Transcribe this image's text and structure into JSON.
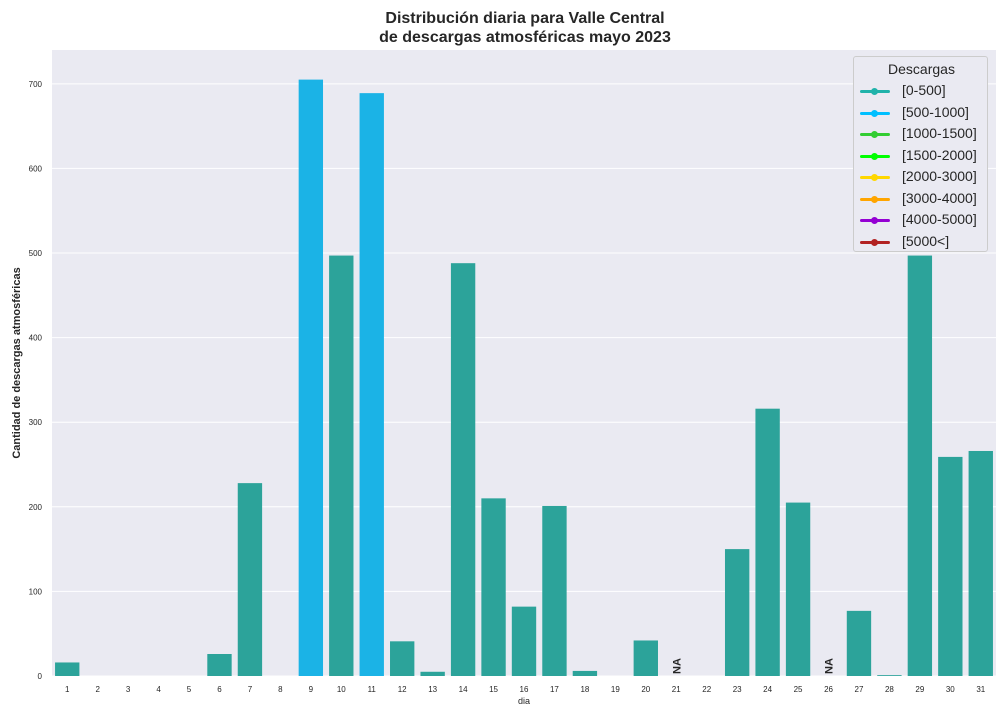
{
  "chart_data": {
    "type": "bar",
    "title_line1": "Distribución diaria para Valle Central",
    "title_line2": "de descargas atmosféricas mayo 2023",
    "xlabel": "dia",
    "ylabel": "Cantidad de descargas atmosféricas",
    "ylim": [
      0,
      740
    ],
    "yticks": [
      0,
      100,
      200,
      300,
      400,
      500,
      600,
      700
    ],
    "grid": true,
    "legend_position": "top-right",
    "categories": [
      "1",
      "2",
      "3",
      "4",
      "5",
      "6",
      "7",
      "8",
      "9",
      "10",
      "11",
      "12",
      "13",
      "14",
      "15",
      "16",
      "17",
      "18",
      "19",
      "20",
      "21",
      "22",
      "23",
      "24",
      "25",
      "26",
      "27",
      "28",
      "29",
      "30",
      "31"
    ],
    "values": [
      16,
      0,
      0,
      0,
      0,
      26,
      228,
      0,
      705,
      497,
      689,
      41,
      5,
      488,
      210,
      82,
      201,
      6,
      0,
      42,
      null,
      0,
      150,
      316,
      205,
      null,
      77,
      1,
      497,
      259,
      266
    ],
    "bar_colors": [
      "#2ca39a",
      "#2ca39a",
      "#2ca39a",
      "#2ca39a",
      "#2ca39a",
      "#2ca39a",
      "#2ca39a",
      "#2ca39a",
      "#1bb3e6",
      "#2ca39a",
      "#1bb3e6",
      "#2ca39a",
      "#2ca39a",
      "#2ca39a",
      "#2ca39a",
      "#2ca39a",
      "#2ca39a",
      "#2ca39a",
      "#2ca39a",
      "#2ca39a",
      "#2ca39a",
      "#2ca39a",
      "#2ca39a",
      "#2ca39a",
      "#2ca39a",
      "#2ca39a",
      "#2ca39a",
      "#2ca39a",
      "#2ca39a",
      "#2ca39a",
      "#2ca39a"
    ],
    "na_label": "NA",
    "legend": {
      "title": "Descargas",
      "entries": [
        {
          "label": "[0-500]",
          "color": "#20b2aa"
        },
        {
          "label": "[500-1000]",
          "color": "#00bfff"
        },
        {
          "label": "[1000-1500]",
          "color": "#32cd32"
        },
        {
          "label": "[1500-2000]",
          "color": "#00ff00"
        },
        {
          "label": "[2000-3000]",
          "color": "#ffd700"
        },
        {
          "label": "[3000-4000]",
          "color": "#ffa500"
        },
        {
          "label": "[4000-5000]",
          "color": "#9400d3"
        },
        {
          "label": "[5000<]",
          "color": "#b22222"
        }
      ]
    }
  }
}
